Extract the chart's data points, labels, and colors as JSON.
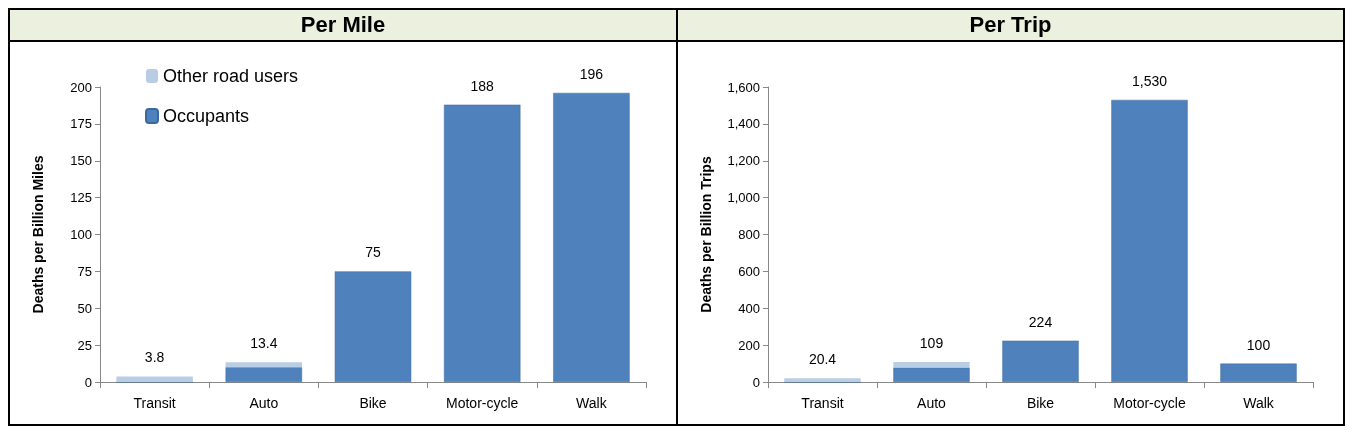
{
  "chart_data": [
    {
      "type": "bar",
      "title": "Per Mile",
      "ylabel": "Deaths per Billion Miles",
      "categories": [
        "Transit",
        "Auto",
        "Bike",
        "Motor-cycle",
        "Walk"
      ],
      "stacked": true,
      "series": [
        {
          "name": "Occupants",
          "color": "#4f81bd",
          "values": [
            0,
            10,
            75,
            188,
            196
          ]
        },
        {
          "name": "Other road users",
          "color": "#b9cde5",
          "values": [
            3.8,
            3.4,
            0,
            0,
            0
          ]
        }
      ],
      "totals": [
        "3.8",
        "13.4",
        "75",
        "188",
        "196"
      ],
      "ylim": [
        0,
        200
      ],
      "yticks": [
        0,
        25,
        50,
        75,
        100,
        125,
        150,
        175,
        200
      ],
      "grid": false,
      "legend": "top left"
    },
    {
      "type": "bar",
      "title": "Per Trip",
      "ylabel": "Deaths per Billion Trips",
      "categories": [
        "Transit",
        "Auto",
        "Bike",
        "Motor-cycle",
        "Walk"
      ],
      "stacked": true,
      "series": [
        {
          "color": "#4f81bd",
          "values": [
            0,
            78,
            224,
            1530,
            100
          ]
        },
        {
          "color": "#b9cde5",
          "values": [
            20.4,
            31,
            0,
            0,
            0
          ]
        }
      ],
      "totals": [
        "20.4",
        "109",
        "224",
        "1,530",
        "100"
      ],
      "ylim": [
        0,
        1600
      ],
      "yticks": [
        0,
        {
          "value": 200,
          "label": "200"
        },
        {
          "value": 400,
          "label": "400"
        },
        {
          "value": 600,
          "label": "600"
        },
        {
          "value": 800,
          "label": "800"
        },
        {
          "value": 1000,
          "label": "1,000"
        },
        {
          "value": 1200,
          "label": "1,200"
        },
        {
          "value": 1400,
          "label": "1,400"
        },
        {
          "value": 1600,
          "label": "1,600"
        }
      ],
      "grid": false,
      "legend": false
    }
  ]
}
